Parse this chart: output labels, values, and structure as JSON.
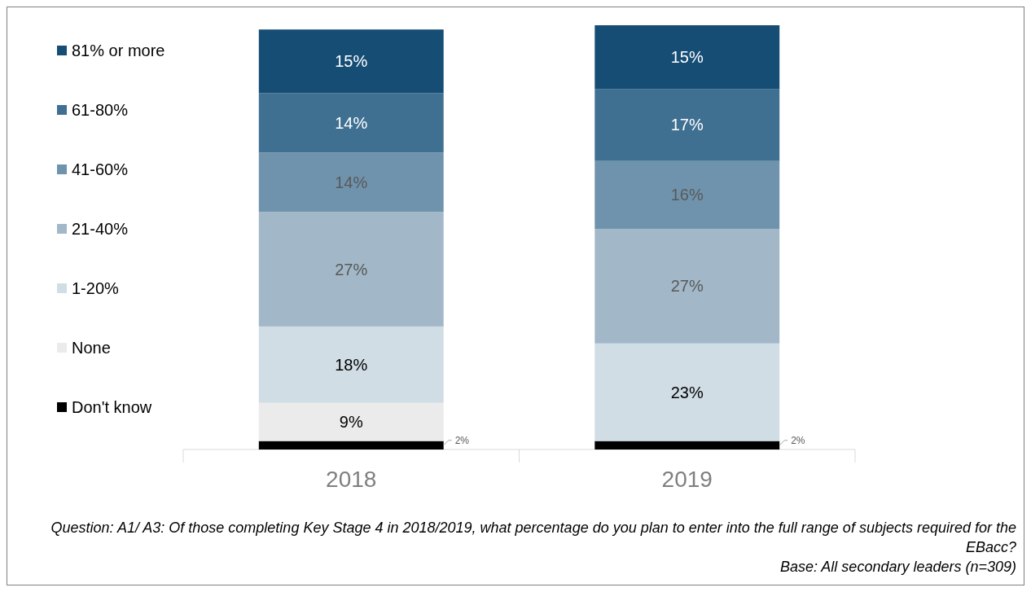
{
  "chart_data": {
    "type": "bar",
    "stacked": true,
    "categories": [
      "2018",
      "2019"
    ],
    "series": [
      {
        "name": "Don't know",
        "color": "#000000",
        "values": [
          2,
          2
        ],
        "value_labels": [
          "2%",
          "2%"
        ]
      },
      {
        "name": "None",
        "color": "#ebebeb",
        "values": [
          9,
          null
        ],
        "value_labels": [
          "9%",
          null
        ]
      },
      {
        "name": "1-20%",
        "color": "#d1dde5",
        "values": [
          18,
          23
        ],
        "value_labels": [
          "18%",
          "23%"
        ]
      },
      {
        "name": "21-40%",
        "color": "#a2b8c8",
        "values": [
          27,
          27
        ],
        "value_labels": [
          "27%",
          "27%"
        ]
      },
      {
        "name": "41-60%",
        "color": "#6f93ad",
        "values": [
          14,
          16
        ],
        "value_labels": [
          "14%",
          "16%"
        ]
      },
      {
        "name": "61-80%",
        "color": "#3f7092",
        "values": [
          14,
          17
        ],
        "value_labels": [
          "14%",
          "17%"
        ]
      },
      {
        "name": "81% or more",
        "color": "#164d75",
        "values": [
          15,
          15
        ],
        "value_labels": [
          "15%",
          "15%"
        ]
      }
    ],
    "legend": "left",
    "annotations": [
      "Question: A1/ A3: Of those completing Key Stage 4 in 2018/2019, what percentage do you plan to enter into the full range of subjects required for the EBacc?",
      "Base: All secondary leaders (n=309)"
    ]
  }
}
